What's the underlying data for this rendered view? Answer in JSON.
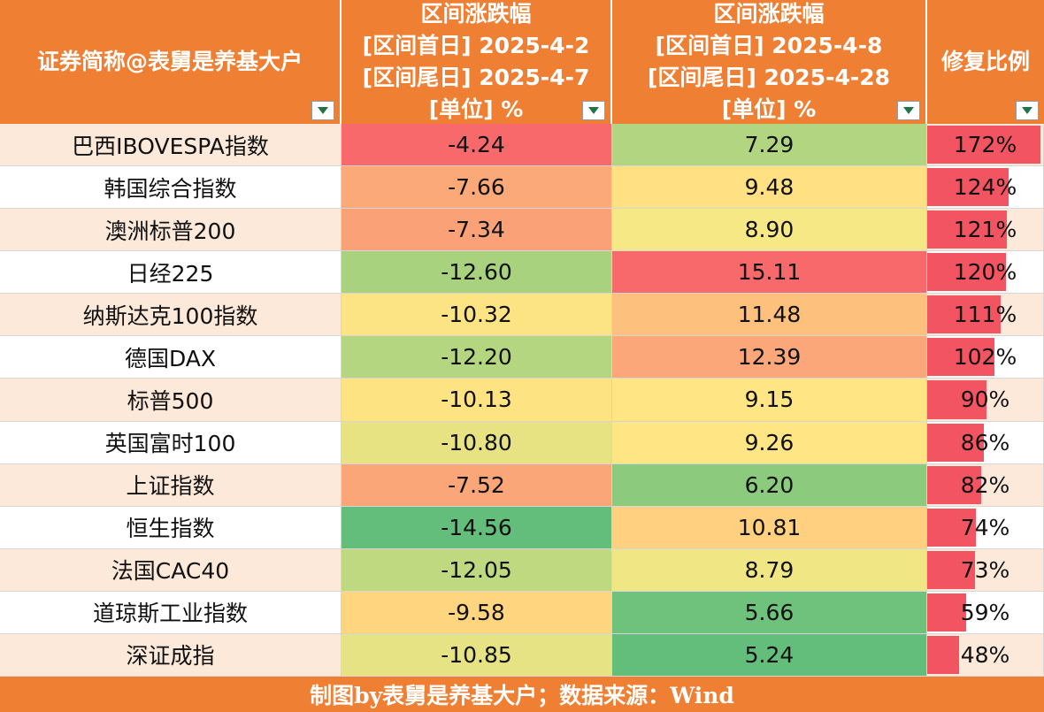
{
  "chart_data": {
    "type": "table",
    "headers": {
      "name": [
        "证券简称@表舅是养基大户"
      ],
      "period1": [
        "区间涨跌幅",
        "[区间首日] 2025-4-2",
        "[区间尾日] 2025-4-7",
        "[单位] %"
      ],
      "period2": [
        "区间涨跌幅",
        "[区间首日] 2025-4-8",
        "[区间尾日] 2025-4-28",
        "[单位] %"
      ],
      "ratio": [
        "修复比例"
      ]
    },
    "rows": [
      {
        "name": "巴西IBOVESPA指数",
        "v1": "-4.24",
        "v2": "7.29",
        "ratio": "172%",
        "ratio_value": 172,
        "c1": "#F8696B",
        "c2": "#B1D580"
      },
      {
        "name": "韩国综合指数",
        "v1": "-7.66",
        "v2": "9.48",
        "ratio": "124%",
        "ratio_value": 124,
        "c1": "#FBA979",
        "c2": "#FFE083"
      },
      {
        "name": "澳洲标普200",
        "v1": "-7.34",
        "v2": "8.90",
        "ratio": "121%",
        "ratio_value": 121,
        "c1": "#FBA178",
        "c2": "#F6E884"
      },
      {
        "name": "日经225",
        "v1": "-12.60",
        "v2": "15.11",
        "ratio": "120%",
        "ratio_value": 120,
        "c1": "#A9D27F",
        "c2": "#F8696B"
      },
      {
        "name": "纳斯达克100指数",
        "v1": "-10.32",
        "v2": "11.48",
        "ratio": "111%",
        "ratio_value": 111,
        "c1": "#FCE383",
        "c2": "#FDC07D"
      },
      {
        "name": "德国DAX",
        "v1": "-12.20",
        "v2": "12.39",
        "ratio": "102%",
        "ratio_value": 102,
        "c1": "#B5D680",
        "c2": "#FBA77A"
      },
      {
        "name": "标普500",
        "v1": "-10.13",
        "v2": "9.15",
        "ratio": "90%",
        "ratio_value": 90,
        "c1": "#FEE382",
        "c2": "#FFE583"
      },
      {
        "name": "英国富时100",
        "v1": "-10.80",
        "v2": "9.26",
        "ratio": "86%",
        "ratio_value": 86,
        "c1": "#E7E383",
        "c2": "#FFE583"
      },
      {
        "name": "上证指数",
        "v1": "-7.52",
        "v2": "6.20",
        "ratio": "82%",
        "ratio_value": 82,
        "c1": "#FBA679",
        "c2": "#8CCA7D"
      },
      {
        "name": "恒生指数",
        "v1": "-14.56",
        "v2": "10.81",
        "ratio": "74%",
        "ratio_value": 74,
        "c1": "#63BE7B",
        "c2": "#FED080"
      },
      {
        "name": "法国CAC40",
        "v1": "-12.05",
        "v2": "8.79",
        "ratio": "73%",
        "ratio_value": 73,
        "c1": "#BFD981",
        "c2": "#F0E784"
      },
      {
        "name": "道琼斯工业指数",
        "v1": "-9.58",
        "v2": "5.66",
        "ratio": "59%",
        "ratio_value": 59,
        "c1": "#FFD580",
        "c2": "#6FC27C"
      },
      {
        "name": "深证成指",
        "v1": "-10.85",
        "v2": "5.24",
        "ratio": "48%",
        "ratio_value": 48,
        "c1": "#E5E383",
        "c2": "#63BE7B"
      }
    ],
    "ratio_max": 172,
    "bar_color": "#F25461",
    "footer": "制图by表舅是养基大户；数据来源：Wind"
  },
  "colors": {
    "header_bg": "#EE7F33",
    "row_stripe": "#FDE9D9",
    "row_plain": "#FFFFFF"
  }
}
